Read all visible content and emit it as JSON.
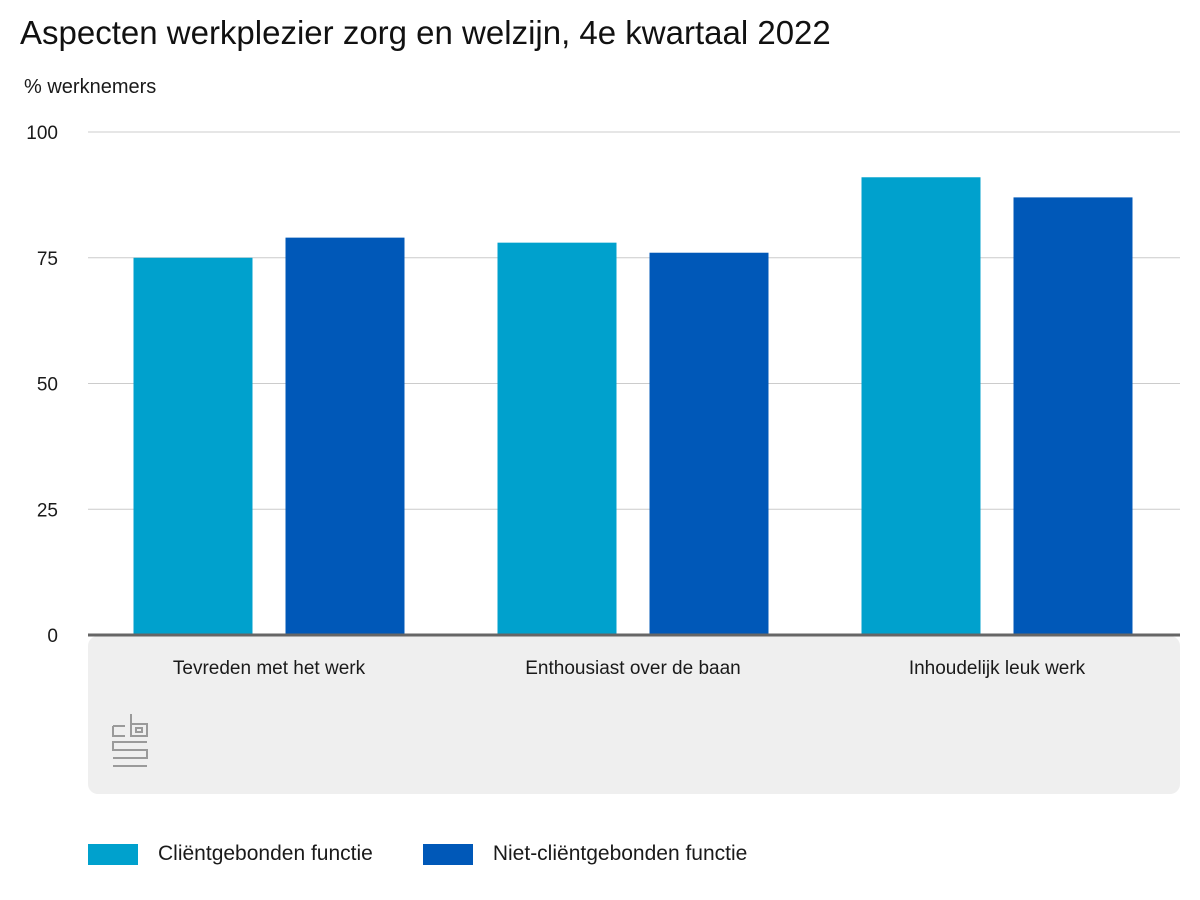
{
  "chart_data": {
    "type": "bar",
    "title": "Aspecten werkplezier zorg en welzijn, 4e kwartaal 2022",
    "ylabel": "% werknemers",
    "xlabel": "",
    "categories": [
      "Tevreden met het werk",
      "Enthousiast over de baan",
      "Inhoudelijk leuk werk"
    ],
    "series": [
      {
        "name": "Cliëntgebonden functie",
        "color": "#00a1cd",
        "values": [
          75,
          78,
          91
        ]
      },
      {
        "name": "Niet-cliëntgebonden functie",
        "color": "#0058b8",
        "values": [
          79,
          76,
          87
        ]
      }
    ],
    "ylim": [
      0,
      100
    ],
    "yticks": [
      0,
      25,
      50,
      75,
      100
    ],
    "grid": true,
    "legend_position": "bottom-left"
  },
  "logo": {
    "icon": "cbs-logo-icon",
    "text": "cbs"
  }
}
